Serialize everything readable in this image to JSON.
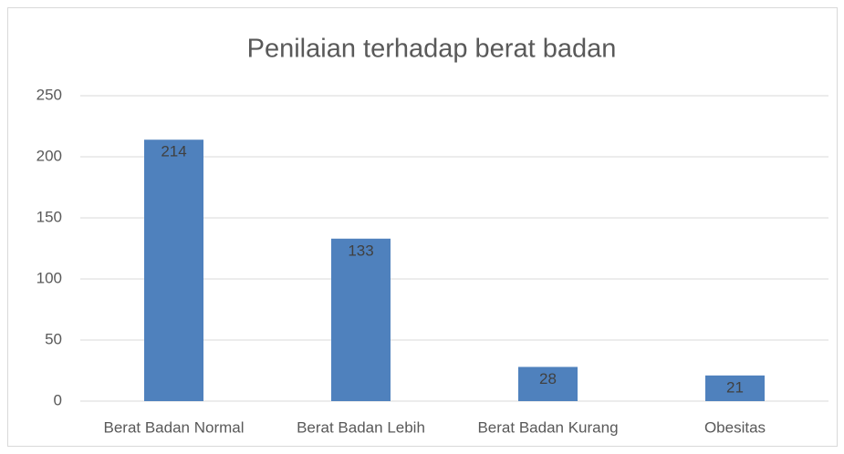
{
  "chart_data": {
    "type": "bar",
    "title": "Penilaian terhadap berat badan",
    "categories": [
      "Berat Badan Normal",
      "Berat Badan Lebih",
      "Berat Badan Kurang",
      "Obesitas"
    ],
    "values": [
      214,
      133,
      28,
      21
    ],
    "color": "#4f81bd",
    "ylim": [
      0,
      250
    ],
    "yticks": [
      0,
      50,
      100,
      150,
      200,
      250
    ],
    "grid": true,
    "data_labels": true
  }
}
